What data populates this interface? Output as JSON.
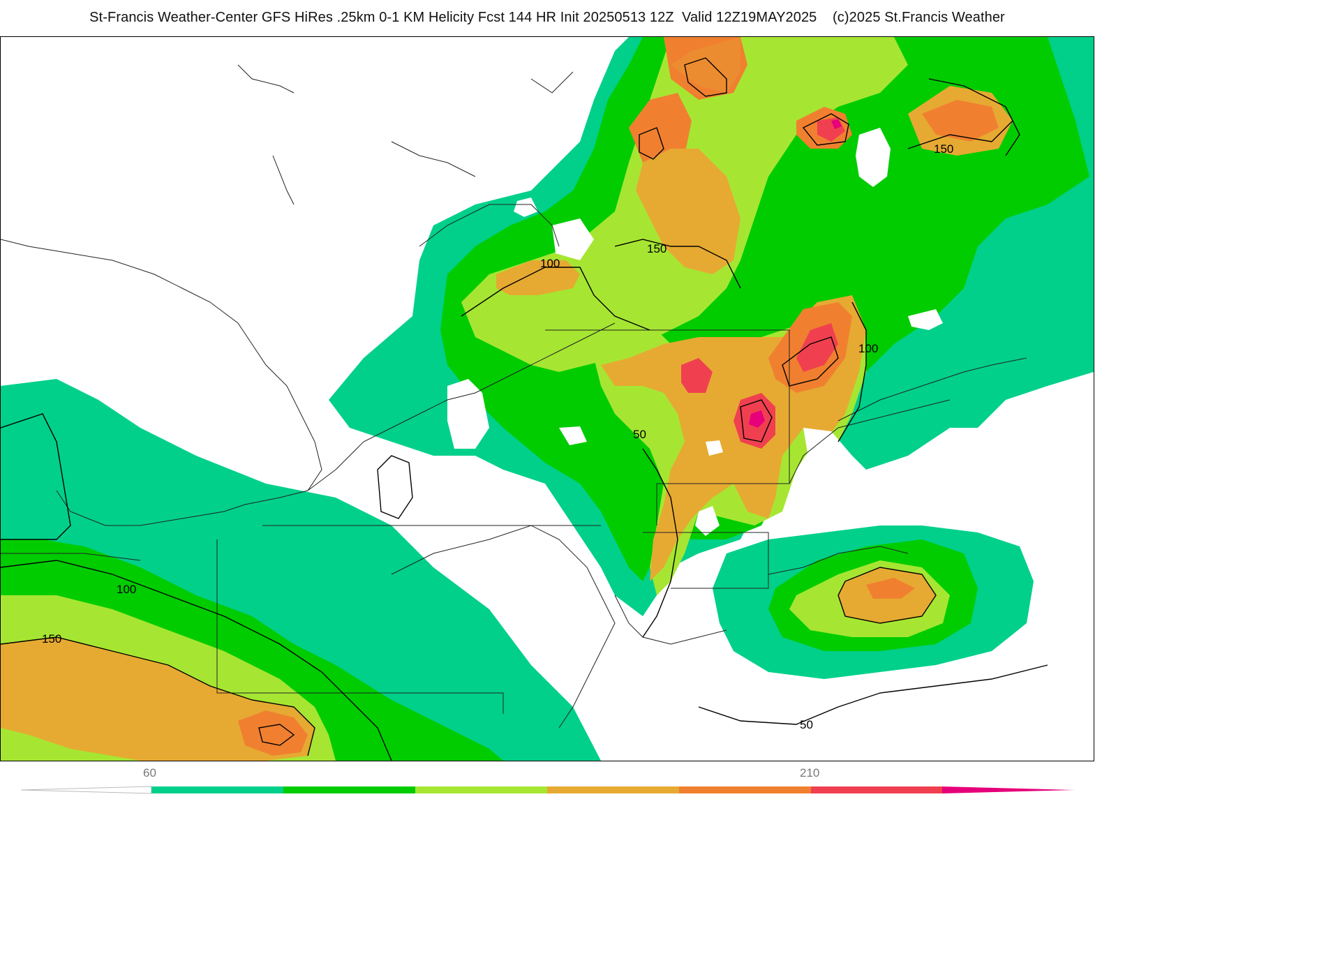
{
  "title": "St-Francis Weather-Center GFS HiRes .25km 0-1 KM Helicity Fcst 144 HR Init 20250513 12Z  Valid 12Z19MAY2025    (c)2025 St.Francis Weather",
  "map": {
    "contour_labels": [
      "100",
      "150",
      "50",
      "100",
      "100",
      "150",
      "150",
      "50"
    ]
  },
  "colorbar": {
    "tick_labels": [
      "60",
      "210"
    ],
    "colors": [
      "#00d08a",
      "#00cc00",
      "#a6e632",
      "#e6aa32",
      "#f08030",
      "#f04050",
      "#e6007a"
    ]
  }
}
